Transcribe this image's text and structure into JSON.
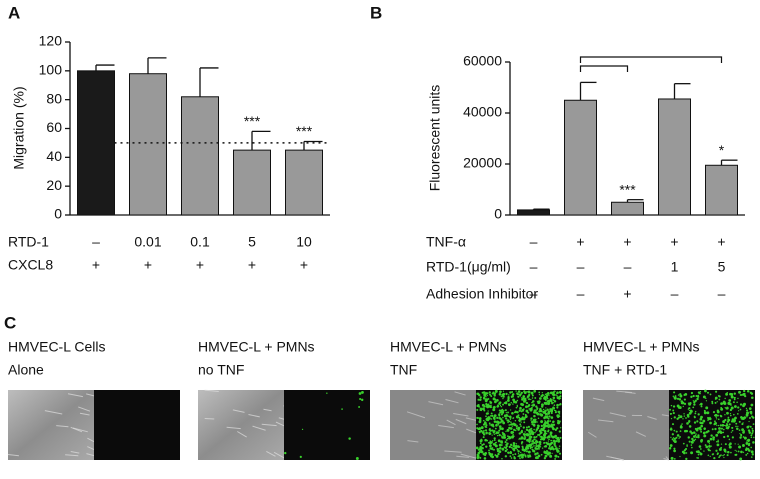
{
  "chart_data": [
    {
      "type": "bar",
      "panel_label": "A",
      "y_label": "Migration (%)",
      "ylim": [
        0,
        120
      ],
      "yticks": [
        0,
        20,
        40,
        60,
        80,
        100,
        120
      ],
      "series": [
        {
          "colors": [
            "#1a1a1a",
            "#999999",
            "#999999",
            "#999999",
            "#999999"
          ],
          "values": [
            100,
            98,
            82,
            45,
            45
          ],
          "errors": [
            4,
            11,
            20,
            13,
            6
          ],
          "annotations": [
            null,
            null,
            null,
            "***",
            "***"
          ]
        }
      ],
      "reference_line": 50,
      "rows": [
        {
          "label": "RTD-1",
          "values": [
            "–",
            "0.01",
            "0.1",
            "5",
            "10"
          ]
        },
        {
          "label": "CXCL8",
          "values": [
            "+",
            "+",
            "+",
            "+",
            "+"
          ]
        }
      ]
    },
    {
      "type": "bar",
      "panel_label": "B",
      "y_label": "Fluorescent units",
      "ylim": [
        0,
        60000
      ],
      "yticks": [
        0,
        20000,
        40000,
        60000
      ],
      "series": [
        {
          "colors": [
            "#1a1a1a",
            "#999999",
            "#999999",
            "#999999",
            "#999999"
          ],
          "values": [
            2000,
            45000,
            5000,
            45500,
            19500
          ],
          "errors": [
            300,
            7000,
            1000,
            6000,
            2000
          ],
          "annotations": [
            null,
            null,
            "***",
            null,
            "*"
          ]
        }
      ],
      "rows": [
        {
          "label": "TNF-α",
          "values": [
            "–",
            "+",
            "+",
            "+",
            "+"
          ]
        },
        {
          "label": "RTD-1(μg/ml)",
          "values": [
            "–",
            "–",
            "–",
            "1",
            "5"
          ]
        },
        {
          "label": "Adhesion Inhibitor",
          "values": [
            "–",
            "–",
            "+",
            "–",
            "–"
          ]
        }
      ]
    }
  ],
  "panel_c": {
    "panel_label": "C",
    "images": [
      {
        "line1": "HMVEC-L Cells",
        "line2": "Alone"
      },
      {
        "line1": "HMVEC-L + PMNs",
        "line2": "no TNF"
      },
      {
        "line1": "HMVEC-L + PMNs",
        "line2": "TNF"
      },
      {
        "line1": "HMVEC-L + PMNs",
        "line2": "TNF + RTD-1"
      }
    ]
  }
}
